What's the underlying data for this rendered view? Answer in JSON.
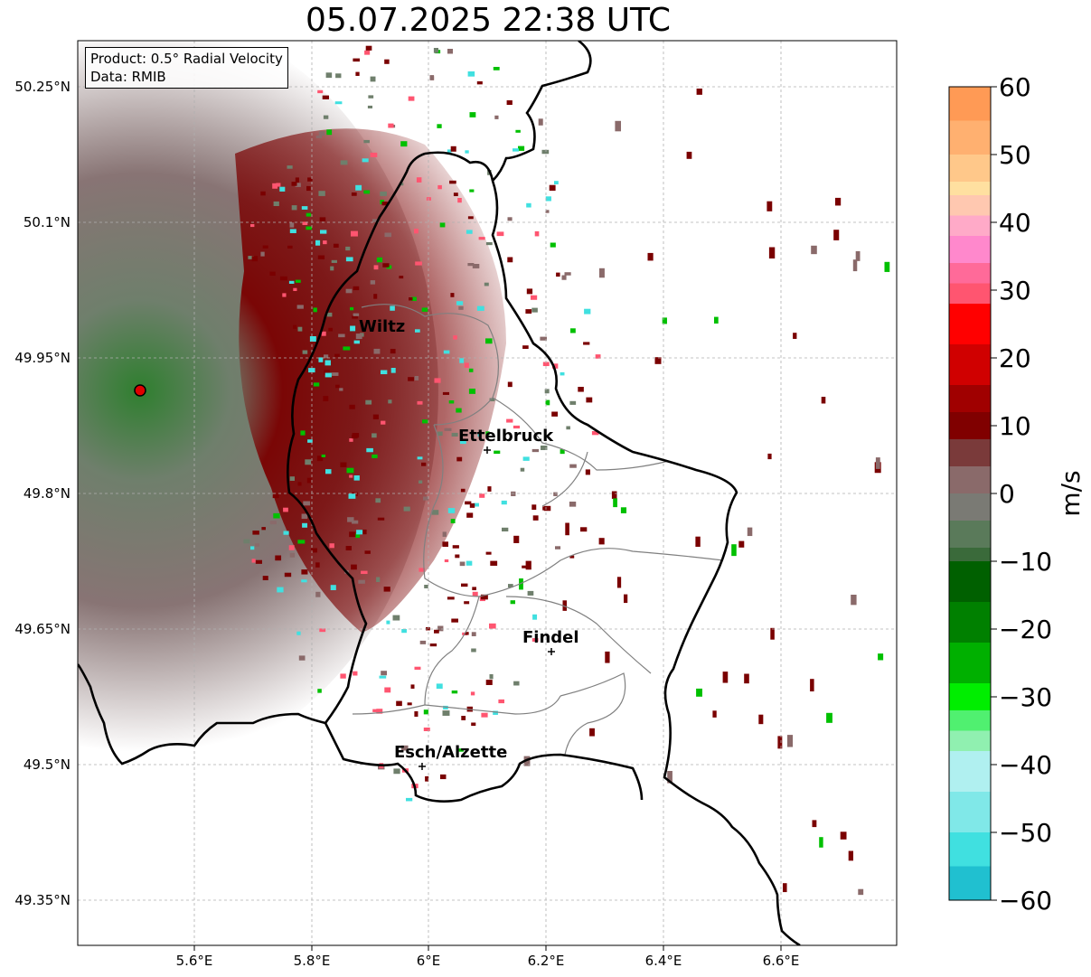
{
  "title": "05.07.2025 22:38 UTC",
  "info": {
    "product": "Product: 0.5° Radial Velocity",
    "source": "Data: RMIB"
  },
  "axes": {
    "lon_ticks": [
      "5.6°E",
      "5.8°E",
      "6°E",
      "6.2°E",
      "6.4°E",
      "6.6°E"
    ],
    "lat_ticks": [
      "50.25°N",
      "50.1°N",
      "49.95°N",
      "49.8°N",
      "49.65°N",
      "49.5°N",
      "49.35°N"
    ]
  },
  "places": [
    {
      "name": "Wiltz"
    },
    {
      "name": "Ettelbruck"
    },
    {
      "name": "Findel"
    },
    {
      "name": "Esch/Alzette"
    }
  ],
  "colorbar": {
    "unit": "m/s",
    "ticks": [
      "60",
      "50",
      "40",
      "30",
      "20",
      "10",
      "0",
      "−10",
      "−20",
      "−30",
      "−40",
      "−50",
      "−60"
    ]
  }
}
